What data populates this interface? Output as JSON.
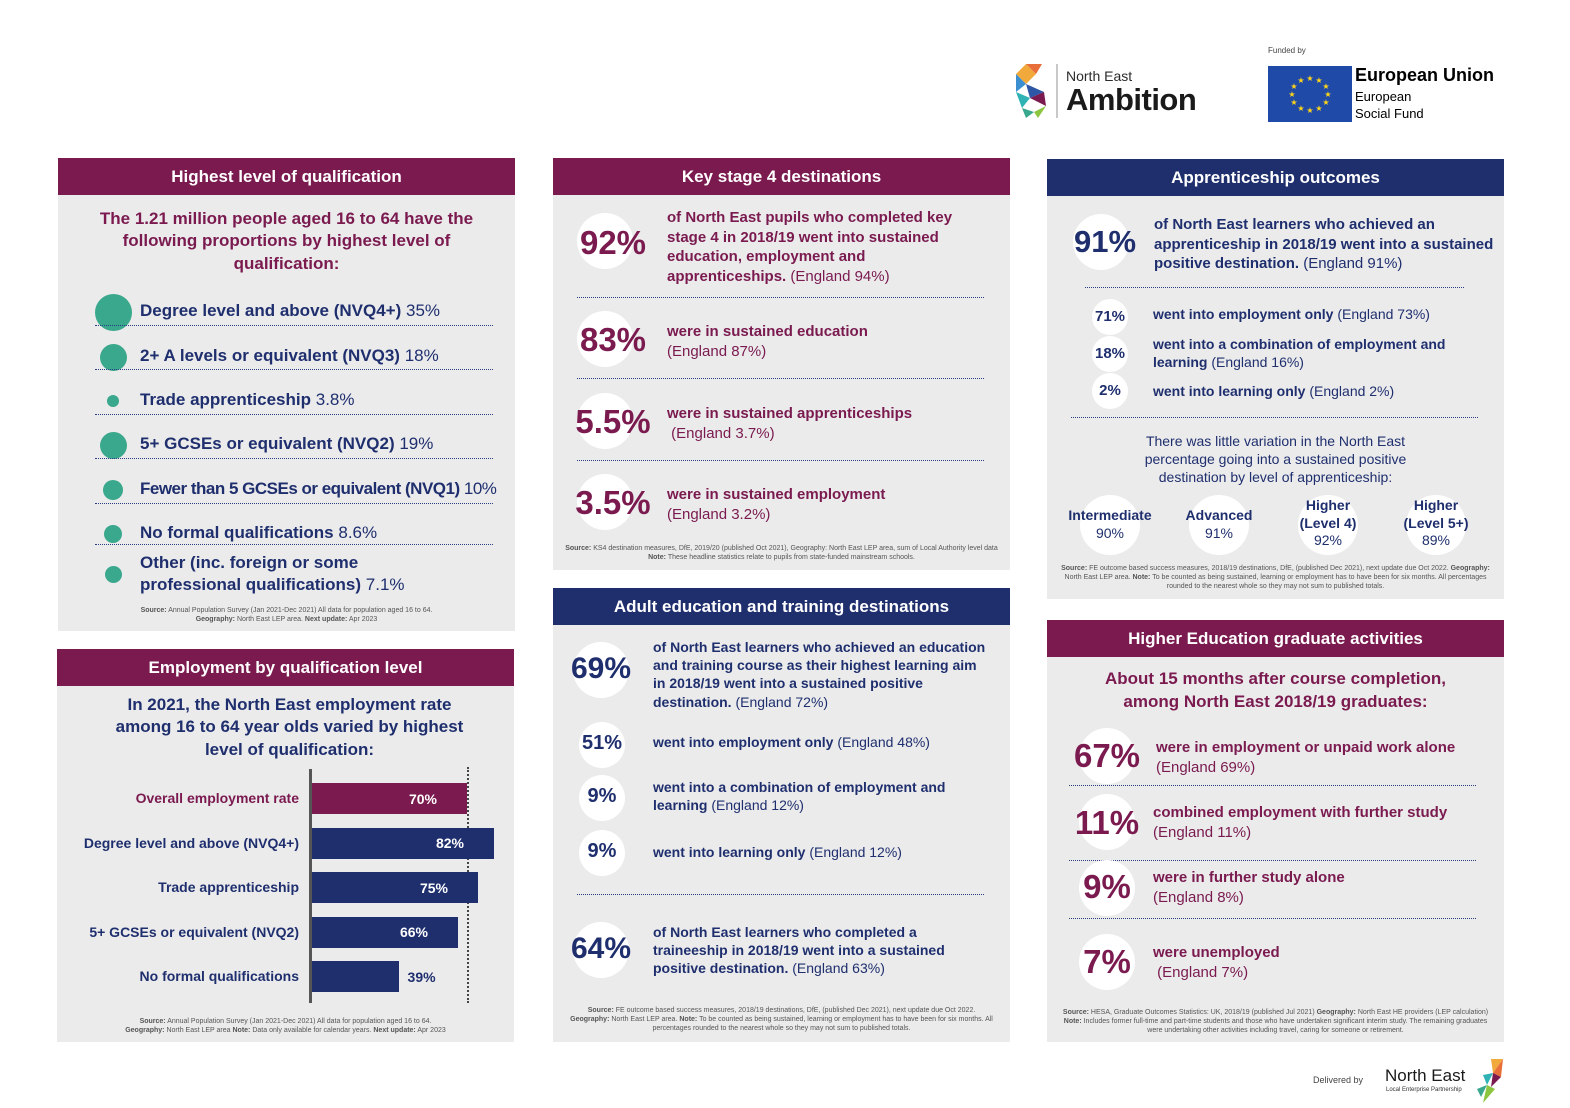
{
  "logos": {
    "ambition_small": "North East",
    "ambition_big": "Ambition",
    "funded_by": "Funded by",
    "eu_title": "European Union",
    "eu_sub1": "European",
    "eu_sub2": "Social Fund",
    "delivered_by": "Delivered by",
    "lep_name": "North East",
    "lep_sub": "Local Enterprise Partnership"
  },
  "colors": {
    "maroon": "#7a1a4f",
    "navy": "#1f2f6e",
    "teal": "#3aa88c",
    "panel": "#ebebec"
  },
  "qualification": {
    "title": "Highest level of qualification",
    "intro": "The 1.21 million people aged 16 to 64 have the following proportions by highest level of qualification:",
    "items": [
      {
        "label": "Degree level and above (NVQ4+)",
        "value": "35%",
        "share": 35
      },
      {
        "label": "2+ A levels or equivalent (NVQ3)",
        "value": "18%",
        "share": 18
      },
      {
        "label": "Trade apprenticeship",
        "value": "3.8%",
        "share": 3.8
      },
      {
        "label": "5+ GCSEs or equivalent (NVQ2)",
        "value": "19%",
        "share": 19
      },
      {
        "label": "Fewer than 5 GCSEs or equivalent (NVQ1)",
        "value": "10%",
        "share": 10
      },
      {
        "label": "No formal qualifications",
        "value": "8.6%",
        "share": 8.6
      },
      {
        "label": "Other (inc. foreign or some professional qualifications)",
        "value": "7.1%",
        "share": 7.1
      }
    ],
    "source_label": "Source:",
    "source": "Annual Population Survey (Jan 2021-Dec 2021) All data for population aged 16 to 64.",
    "geo_label": "Geography:",
    "geo": "North East LEP area.",
    "next_label": "Next update:",
    "next": "Apr 2023"
  },
  "employment": {
    "title": "Employment by qualification level",
    "intro": "In 2021, the North East employment rate among 16 to 64 year olds varied by highest level of qualification:",
    "source_label": "Source:",
    "source": "Annual Population Survey (Jan 2021-Dec 2021) All data for population aged 16 to 64.",
    "geo_label": "Geography:",
    "geo": "North East LEP area",
    "note_label": "Note:",
    "note": "Data only available for calendar years.",
    "next_label": "Next update:",
    "next": "Apr 2023"
  },
  "chart_data": {
    "type": "bar",
    "orientation": "horizontal",
    "categories": [
      "Overall employment rate",
      "Degree level and above (NVQ4+)",
      "Trade apprenticeship",
      "5+ GCSEs or equivalent (NVQ2)",
      "No formal qualifications"
    ],
    "values": [
      70,
      82,
      75,
      66,
      39
    ],
    "labels": [
      "70%",
      "82%",
      "75%",
      "66%",
      "39%"
    ],
    "reference_value": 70,
    "xlim": [
      0,
      82
    ]
  },
  "ks4": {
    "title": "Key stage 4 destinations",
    "items": [
      {
        "pct": "92%",
        "text": "of North East pupils who completed key stage 4 in 2018/19 went into sustained education, employment and apprenticeships.",
        "eng": "(England 94%)"
      },
      {
        "pct": "83%",
        "text": "were in sustained education",
        "eng": "(England 87%)"
      },
      {
        "pct": "5.5%",
        "text": "were in sustained apprenticeships",
        "eng": "(England 3.7%)"
      },
      {
        "pct": "3.5%",
        "text": "were in sustained employment",
        "eng": "(England 3.2%)"
      }
    ],
    "source_label": "Source:",
    "source": "KS4 destination measures, DfE, 2019/20 (published Oct 2021), Geography: North East LEP area, sum of Local Authority level data",
    "note_label": "Note:",
    "note": "These headline statistics relate to pupils from state-funded mainstream schools."
  },
  "adult": {
    "title": "Adult education and training destinations",
    "main": {
      "pct": "69%",
      "text": "of North East learners who achieved an education and training course as their highest learning aim in 2018/19 went into a sustained positive destination.",
      "eng": "(England 72%)"
    },
    "items": [
      {
        "pct": "51%",
        "text": "went into employment only",
        "eng": "(England 48%)"
      },
      {
        "pct": "9%",
        "text": "went into a combination of employment and learning",
        "eng": "(England 12%)"
      },
      {
        "pct": "9%",
        "text": "went into learning only",
        "eng": "(England 12%)"
      }
    ],
    "trainee": {
      "pct": "64%",
      "text": "of North East learners who completed a traineeship in 2018/19 went into a sustained positive destination.",
      "eng": "(England 63%)"
    },
    "source_label": "Source:",
    "source": "FE outcome based success measures, 2018/19 destinations, DfE, (published Dec 2021), next update due Oct 2022.",
    "geo_label": "Geography:",
    "geo": "North East LEP area.",
    "note_label": "Note:",
    "note": "To be counted as being sustained, learning or employment has to have been for six months. All percentages rounded to the nearest whole so they may not sum to published totals."
  },
  "appr": {
    "title": "Apprenticeship outcomes",
    "main": {
      "pct": "91%",
      "text": "of North East learners who achieved an apprenticeship in 2018/19 went into a sustained positive destination.",
      "eng": "(England 91%)"
    },
    "items": [
      {
        "pct": "71%",
        "text": "went into employment only",
        "eng": "(England 73%)"
      },
      {
        "pct": "18%",
        "text": "went into a combination of employment and learning",
        "eng": "(England 16%)"
      },
      {
        "pct": "2%",
        "text": "went into learning only",
        "eng": "(England 2%)"
      }
    ],
    "variation": "There was little variation in the North East percentage going into a sustained positive destination by level of apprenticeship:",
    "levels": [
      {
        "name": "Intermediate",
        "pct": "90%"
      },
      {
        "name": "Advanced",
        "pct": "91%"
      },
      {
        "name": "Higher (Level 4)",
        "pct": "92%"
      },
      {
        "name": "Higher (Level 5+)",
        "pct": "89%"
      }
    ],
    "source_label": "Source:",
    "source": "FE outcome based success measures, 2018/19 destinations, DfE, (published Dec 2021), next update due Oct 2022.",
    "geo_label": "Geography:",
    "geo": "North East LEP area.",
    "note_label": "Note:",
    "note": "To be counted as being sustained, learning or employment has to have been for six months. All percentages rounded to the nearest whole so they may not sum to published totals."
  },
  "he": {
    "title": "Higher Education graduate activities",
    "intro": "About 15 months after course completion, among North East 2018/19 graduates:",
    "items": [
      {
        "pct": "67%",
        "text": "were in employment or unpaid work alone",
        "eng": "(England 69%)"
      },
      {
        "pct": "11%",
        "text": "combined employment with further study",
        "eng": "(England 11%)"
      },
      {
        "pct": "9%",
        "text": "were in further study alone",
        "eng": "(England 8%)"
      },
      {
        "pct": "7%",
        "text": "were unemployed",
        "eng": "(England 7%)"
      }
    ],
    "source_label": "Source:",
    "source": "HESA, Graduate Outcomes Statistics: UK, 2018/19 (published Jul 2021)",
    "geo_label": "Geography:",
    "geo": "North East HE providers (LEP calculation)",
    "note_label": "Note:",
    "note": "Includes former full-time and part-time students and those who have undertaken significant interim study. The remaining graduates were undertaking other activities including travel, caring for someone or retirement."
  }
}
